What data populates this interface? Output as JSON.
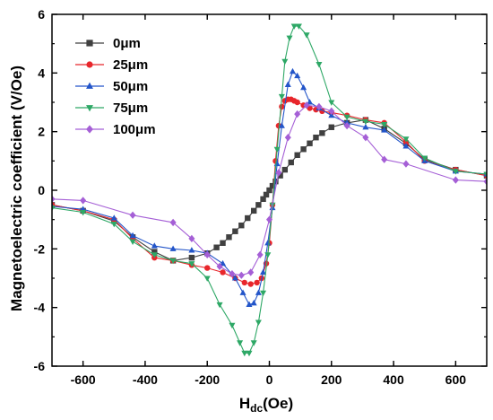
{
  "chart_data": {
    "type": "line",
    "title": "",
    "xlabel": "H",
    "xlabel_sub": "dc",
    "xlabel_unit": "(Oe)",
    "ylabel": "Magnetoelectric coefficient (V/Oe)",
    "xlim": [
      -700,
      700
    ],
    "ylim": [
      -6,
      6
    ],
    "xticks": [
      -600,
      -400,
      -200,
      0,
      200,
      400,
      600
    ],
    "yticks": [
      -6,
      -4,
      -2,
      0,
      2,
      4,
      6
    ],
    "xtick_labels": [
      "-600",
      "-400",
      "-200",
      "0",
      "200",
      "400",
      "600"
    ],
    "ytick_labels": [
      "-6",
      "-4",
      "-2",
      "0",
      "2",
      "4",
      "6"
    ],
    "grid": false,
    "legend_position": "top-left",
    "series": [
      {
        "name": "0μm",
        "color": "#404040",
        "marker": "square",
        "x": [
          -700,
          -600,
          -500,
          -440,
          -370,
          -310,
          -250,
          -200,
          -170,
          -150,
          -130,
          -110,
          -90,
          -70,
          -50,
          -35,
          -20,
          -10,
          0,
          10,
          20,
          35,
          50,
          70,
          90,
          110,
          130,
          150,
          170,
          200,
          250,
          310,
          370,
          440,
          500,
          600,
          700
        ],
        "y": [
          -0.5,
          -0.7,
          -1.05,
          -1.6,
          -2.1,
          -2.4,
          -2.3,
          -2.15,
          -1.95,
          -1.8,
          -1.6,
          -1.4,
          -1.2,
          -0.95,
          -0.7,
          -0.5,
          -0.3,
          -0.15,
          0,
          0.15,
          0.3,
          0.5,
          0.7,
          0.95,
          1.2,
          1.4,
          1.6,
          1.8,
          1.95,
          2.15,
          2.3,
          2.4,
          2.1,
          1.6,
          1.05,
          0.7,
          0.5
        ]
      },
      {
        "name": "25μm",
        "color": "#e8262b",
        "marker": "circle",
        "x": [
          -700,
          -600,
          -500,
          -440,
          -370,
          -310,
          -250,
          -200,
          -150,
          -110,
          -80,
          -60,
          -40,
          -25,
          -10,
          0,
          10,
          20,
          30,
          40,
          50,
          60,
          70,
          80,
          90,
          110,
          130,
          150,
          170,
          200,
          250,
          310,
          370,
          440,
          500,
          600,
          700
        ],
        "y": [
          -0.5,
          -0.7,
          -1.0,
          -1.65,
          -2.3,
          -2.4,
          -2.55,
          -2.65,
          -2.8,
          -3.0,
          -3.15,
          -3.2,
          -3.15,
          -3.0,
          -2.5,
          -1.8,
          -0.5,
          1.0,
          2.2,
          2.85,
          3.05,
          3.1,
          3.1,
          3.05,
          3.0,
          2.9,
          2.8,
          2.75,
          2.7,
          2.65,
          2.55,
          2.4,
          2.3,
          1.65,
          1.0,
          0.7,
          0.5
        ]
      },
      {
        "name": "50μm",
        "color": "#2355c9",
        "marker": "triangle-up",
        "x": [
          -700,
          -600,
          -500,
          -440,
          -370,
          -310,
          -250,
          -200,
          -150,
          -110,
          -85,
          -65,
          -50,
          -35,
          -20,
          -5,
          10,
          25,
          40,
          60,
          75,
          90,
          110,
          130,
          160,
          200,
          250,
          310,
          370,
          440,
          500,
          600,
          700
        ],
        "y": [
          -0.55,
          -0.65,
          -0.95,
          -1.55,
          -1.9,
          -2.0,
          -2.05,
          -2.15,
          -2.5,
          -3.0,
          -3.5,
          -3.9,
          -3.85,
          -3.5,
          -2.8,
          -1.8,
          -0.6,
          0.9,
          2.2,
          3.6,
          4.05,
          3.9,
          3.5,
          3.0,
          2.8,
          2.55,
          2.3,
          2.15,
          2.05,
          1.5,
          1.0,
          0.65,
          0.55
        ]
      },
      {
        "name": "75μm",
        "color": "#2ea866",
        "marker": "triangle-down",
        "x": [
          -700,
          -600,
          -500,
          -440,
          -370,
          -310,
          -250,
          -200,
          -160,
          -120,
          -95,
          -80,
          -65,
          -50,
          -35,
          -20,
          -5,
          10,
          25,
          40,
          50,
          65,
          80,
          95,
          120,
          160,
          200,
          250,
          310,
          370,
          440,
          500,
          600,
          700
        ],
        "y": [
          -0.6,
          -0.75,
          -1.15,
          -1.75,
          -2.2,
          -2.4,
          -2.5,
          -3.0,
          -3.9,
          -4.6,
          -5.2,
          -5.55,
          -5.55,
          -5.2,
          -4.5,
          -3.5,
          -2.2,
          -0.5,
          1.4,
          3.2,
          4.4,
          5.2,
          5.6,
          5.6,
          5.3,
          4.3,
          3.0,
          2.5,
          2.35,
          2.25,
          1.75,
          1.1,
          0.65,
          0.55
        ]
      },
      {
        "name": "100μm",
        "color": "#a55fd6",
        "marker": "diamond",
        "x": [
          -700,
          -600,
          -440,
          -310,
          -250,
          -200,
          -160,
          -120,
          -90,
          -60,
          -30,
          0,
          30,
          60,
          90,
          120,
          160,
          200,
          250,
          310,
          370,
          440,
          600,
          700
        ],
        "y": [
          -0.3,
          -0.35,
          -0.85,
          -1.1,
          -1.65,
          -2.2,
          -2.6,
          -2.85,
          -2.9,
          -2.8,
          -2.2,
          -1.0,
          0.6,
          1.8,
          2.6,
          2.9,
          2.85,
          2.7,
          2.2,
          1.8,
          1.05,
          0.9,
          0.35,
          0.3
        ]
      }
    ]
  }
}
